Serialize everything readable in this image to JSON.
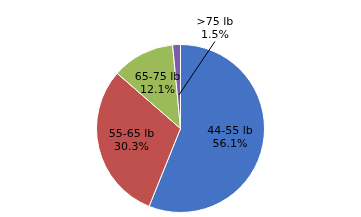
{
  "chart_data": {
    "type": "pie",
    "categories": [
      "44-55 lb",
      "55-65 lb",
      "65-75 lb",
      ">75 lb"
    ],
    "values": [
      56.1,
      30.3,
      12.1,
      1.5
    ],
    "value_labels": [
      "56.1%",
      "30.3%",
      "12.1%",
      "1.5%"
    ],
    "colors": [
      "#4472C4",
      "#C0504D",
      "#9BBB59",
      "#7B5EA7"
    ],
    "data_labels": true
  }
}
